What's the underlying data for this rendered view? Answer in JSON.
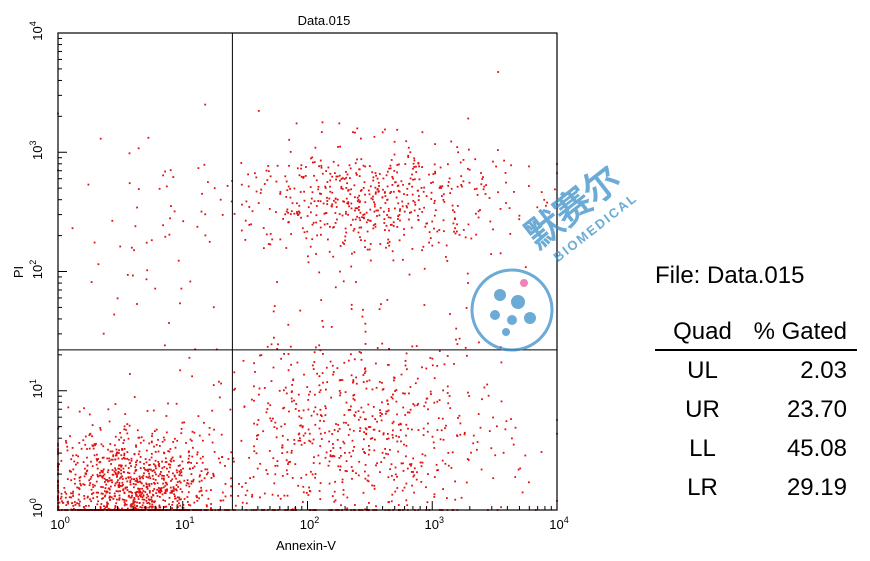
{
  "chart_data": {
    "type": "scatter",
    "title": "Data.015",
    "xlabel": "Annexin-V",
    "ylabel": "PI",
    "x_scale": "log",
    "y_scale": "log",
    "xlim": [
      1,
      10000
    ],
    "ylim": [
      1,
      10000
    ],
    "x_ticks": [
      {
        "base": "10",
        "exp": "0",
        "value": 1
      },
      {
        "base": "10",
        "exp": "1",
        "value": 10
      },
      {
        "base": "10",
        "exp": "2",
        "value": 100
      },
      {
        "base": "10",
        "exp": "3",
        "value": 1000
      },
      {
        "base": "10",
        "exp": "4",
        "value": 10000
      }
    ],
    "y_ticks": [
      {
        "base": "10",
        "exp": "0",
        "value": 1
      },
      {
        "base": "10",
        "exp": "1",
        "value": 10
      },
      {
        "base": "10",
        "exp": "2",
        "value": 100
      },
      {
        "base": "10",
        "exp": "3",
        "value": 1000
      },
      {
        "base": "10",
        "exp": "4",
        "value": 10000
      }
    ],
    "quadrant_gate": {
      "x": 25,
      "y": 22
    },
    "point_color": "#e01010",
    "populations": [
      {
        "quadrant": "LL",
        "center": [
          4,
          1.4
        ],
        "spread_decades": [
          0.35,
          0.25
        ],
        "share": 0.4508
      },
      {
        "quadrant": "LR",
        "center": [
          250,
          4
        ],
        "spread_decades": [
          0.6,
          0.45
        ],
        "share": 0.2919
      },
      {
        "quadrant": "UR",
        "center": [
          300,
          400
        ],
        "spread_decades": [
          0.55,
          0.25
        ],
        "share": 0.237
      },
      {
        "quadrant": "UL",
        "center": [
          5,
          150
        ],
        "spread_decades": [
          0.35,
          0.5
        ],
        "share": 0.0203
      }
    ]
  },
  "stats": {
    "file_label": "File: Data.015",
    "headers": {
      "quad": "Quad",
      "pct": "% Gated"
    },
    "rows": [
      {
        "quad": "UL",
        "pct": "2.03"
      },
      {
        "quad": "UR",
        "pct": "23.70"
      },
      {
        "quad": "LL",
        "pct": "45.08"
      },
      {
        "quad": "LR",
        "pct": "29.19"
      }
    ]
  },
  "watermark": {
    "brand_cn": "默赛尔",
    "brand_en": "BIOMEDICAL",
    "color": "#3a8fc7"
  }
}
